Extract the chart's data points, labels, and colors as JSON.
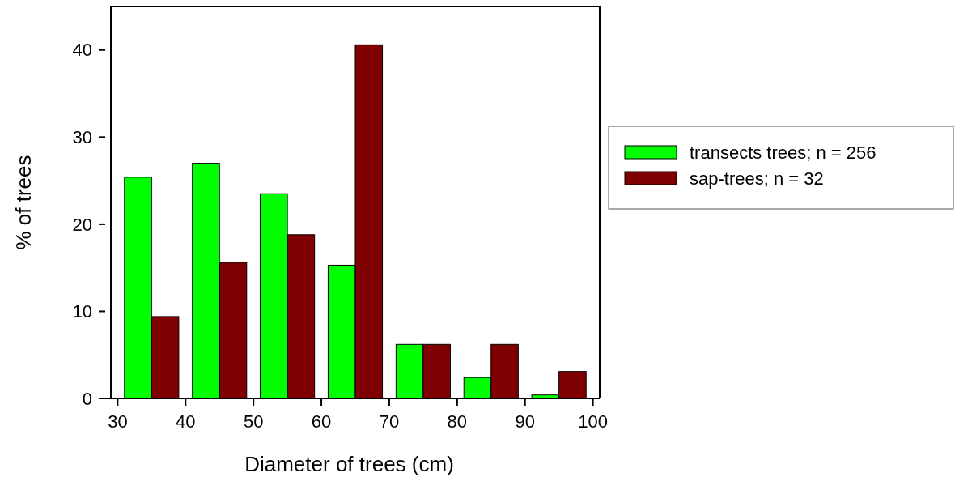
{
  "chart_data": {
    "type": "bar",
    "xlabel": "Diameter of trees (cm)",
    "ylabel": "% of trees",
    "x": [
      35,
      45,
      55,
      65,
      75,
      85,
      95
    ],
    "xlim": [
      29,
      101
    ],
    "xticks": [
      30,
      40,
      50,
      60,
      70,
      80,
      90,
      100
    ],
    "ylim": [
      0,
      45
    ],
    "yticks": [
      0,
      10,
      20,
      30,
      40
    ],
    "series": [
      {
        "name": "transects trees; n = 256",
        "color": "#00ff00",
        "values": [
          25.4,
          27.0,
          23.5,
          15.3,
          6.2,
          2.4,
          0.4
        ]
      },
      {
        "name": "sap-trees; n = 32",
        "color": "#7f0000",
        "values": [
          9.4,
          15.6,
          18.8,
          40.6,
          6.2,
          6.2,
          3.1
        ]
      }
    ],
    "legend": "right",
    "grid": false
  }
}
